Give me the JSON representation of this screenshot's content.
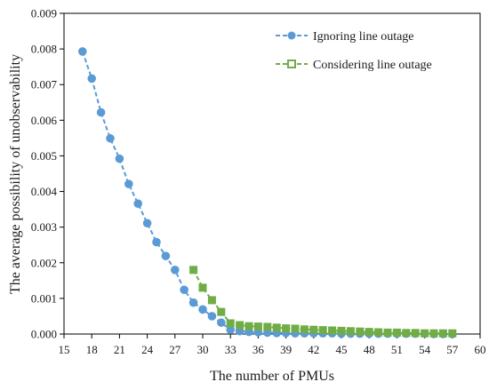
{
  "chart_data": {
    "type": "line",
    "title": "",
    "xlabel": "The number of PMUs",
    "ylabel": "The average possibility of unobservability",
    "xlim": [
      15,
      60
    ],
    "ylim": [
      0,
      0.009
    ],
    "xticks": [
      "15",
      "18",
      "21",
      "24",
      "27",
      "30",
      "33",
      "36",
      "39",
      "42",
      "45",
      "48",
      "51",
      "54",
      "57",
      "60"
    ],
    "yticks": [
      "0.000",
      "0.001",
      "0.002",
      "0.003",
      "0.004",
      "0.005",
      "0.006",
      "0.007",
      "0.008",
      "0.009"
    ],
    "grid": false,
    "legend_position": "top-right",
    "series": [
      {
        "name": "Ignoring line outage",
        "color": "#5b9bd5",
        "marker": "circle",
        "x": [
          17,
          18,
          19,
          20,
          21,
          22,
          23,
          24,
          25,
          26,
          27,
          28,
          29,
          30,
          31,
          32,
          33,
          34,
          35,
          36,
          37,
          38,
          39,
          40,
          41,
          42,
          43,
          44,
          45,
          46,
          47,
          48,
          49,
          50,
          51,
          52,
          53,
          54,
          55,
          56,
          57
        ],
        "y": [
          0.00793,
          0.00717,
          0.00622,
          0.00549,
          0.00492,
          0.00421,
          0.00366,
          0.00311,
          0.00258,
          0.00219,
          0.0018,
          0.00124,
          0.00088,
          0.00069,
          0.0005,
          0.00032,
          0.00012,
          8e-05,
          6e-05,
          5e-05,
          4e-05,
          3e-05,
          3e-05,
          2e-05,
          2e-05,
          2e-05,
          2e-05,
          2e-05,
          1e-05,
          1e-05,
          1e-05,
          1e-05,
          1e-05,
          1e-05,
          1e-05,
          1e-05,
          1e-05,
          1e-05,
          0.0,
          0.0,
          0.0
        ]
      },
      {
        "name": "Considering line outage",
        "color": "#70ad47",
        "marker": "square",
        "x": [
          29,
          30,
          31,
          32,
          33,
          34,
          35,
          36,
          37,
          38,
          39,
          40,
          41,
          42,
          43,
          44,
          45,
          46,
          47,
          48,
          49,
          50,
          51,
          52,
          53,
          54,
          55,
          56,
          57
        ],
        "y": [
          0.0018,
          0.0013,
          0.00095,
          0.00062,
          0.0003,
          0.00025,
          0.00022,
          0.00021,
          0.0002,
          0.00018,
          0.00016,
          0.00015,
          0.00013,
          0.00012,
          0.00011,
          0.0001,
          9e-05,
          8e-05,
          7e-05,
          6e-05,
          5e-05,
          4e-05,
          4e-05,
          3e-05,
          3e-05,
          2e-05,
          2e-05,
          2e-05,
          2e-05
        ]
      }
    ]
  }
}
